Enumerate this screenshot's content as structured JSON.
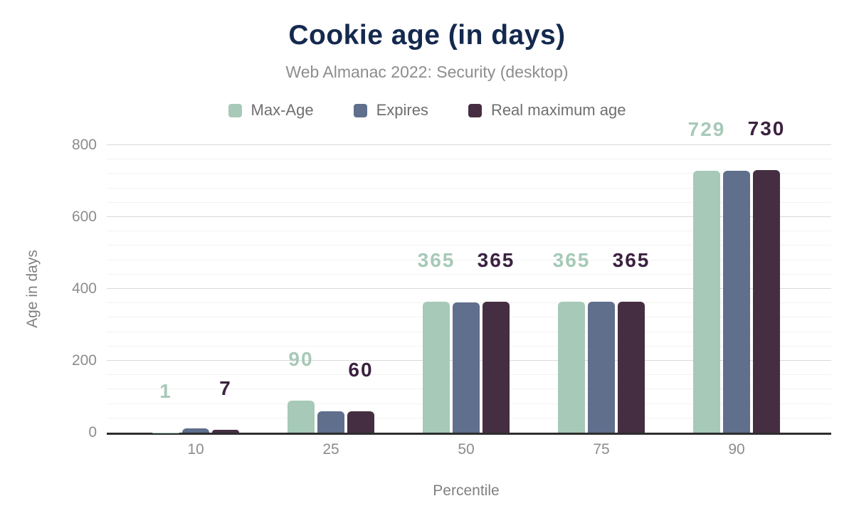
{
  "chart_data": {
    "type": "bar",
    "title": "Cookie age (in days)",
    "subtitle": "Web Almanac 2022: Security (desktop)",
    "xlabel": "Percentile",
    "ylabel": "Age in days",
    "categories": [
      "10",
      "25",
      "50",
      "75",
      "90"
    ],
    "series": [
      {
        "name": "Max-Age",
        "color": "#a7c9b8",
        "label_color": "#a7c9b8",
        "show_value_labels": true,
        "values": [
          1,
          90,
          365,
          365,
          729
        ]
      },
      {
        "name": "Expires",
        "color": "#5f6f8c",
        "show_value_labels": false,
        "values": [
          12,
          60,
          362,
          365,
          729
        ]
      },
      {
        "name": "Real maximum age",
        "color": "#452e42",
        "label_color": "#3b2140",
        "show_value_labels": true,
        "values": [
          7,
          60,
          365,
          365,
          730
        ]
      }
    ],
    "ylim": [
      0,
      800
    ],
    "yticks": [
      0,
      200,
      400,
      600,
      800
    ],
    "minor_gridline_step": 40,
    "grid": true,
    "legend_position": "top"
  },
  "theme": {
    "background": "#ffffff",
    "title_color": "#14294e",
    "subtitle_color": "#8d8d8d",
    "legend_text_color": "#6f6f6f",
    "tick_text_color": "#8c8c8c",
    "axis_title_color": "#808080",
    "axis_line_color": "#2d2d2d",
    "major_gridline_color": "#d9d9d9",
    "minor_gridline_color": "#f2f2f2"
  }
}
